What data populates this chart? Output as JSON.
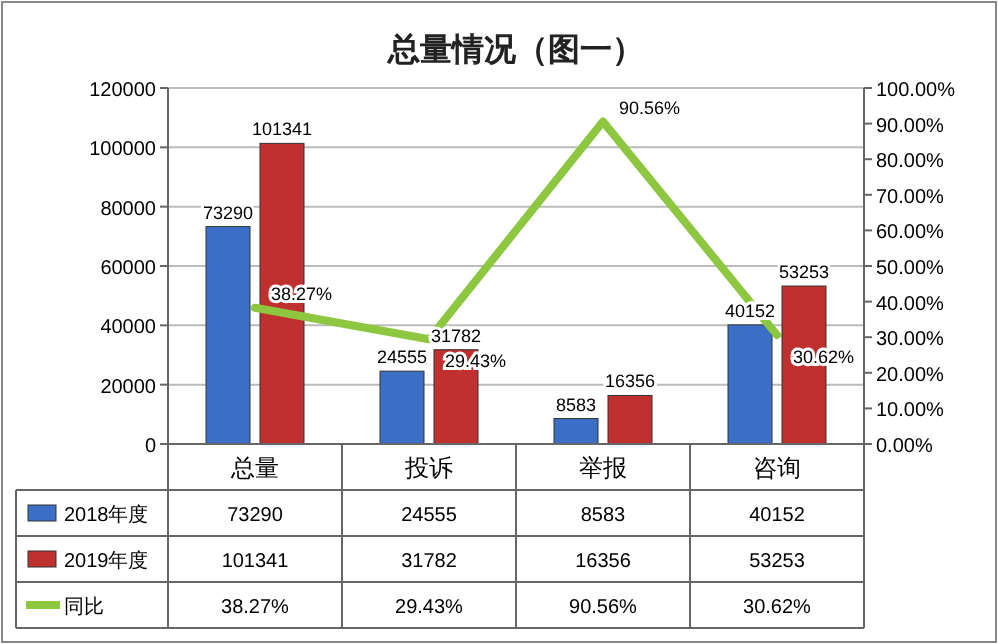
{
  "chart_data": {
    "type": "bar",
    "title": "总量情况（图一）",
    "categories": [
      "总量",
      "投诉",
      "举报",
      "咨询"
    ],
    "series": [
      {
        "name": "2018年度",
        "color": "#3b6fc6",
        "values": [
          73290,
          24555,
          8583,
          40152
        ],
        "value_labels": [
          "73290",
          "24555",
          "8583",
          "40152"
        ]
      },
      {
        "name": "2019年度",
        "color": "#c0302e",
        "values": [
          101341,
          31782,
          16356,
          53253
        ],
        "value_labels": [
          "101341",
          "31782",
          "16356",
          "53253"
        ]
      },
      {
        "name": "同比",
        "type": "line",
        "axis": "y2",
        "color": "#8dc63f",
        "values": [
          38.27,
          29.43,
          90.56,
          30.62
        ],
        "value_labels": [
          "38.27%",
          "29.43%",
          "90.56%",
          "30.62%"
        ]
      }
    ],
    "ylim": [
      0,
      120000
    ],
    "yticks": [
      0,
      20000,
      40000,
      60000,
      80000,
      100000,
      120000
    ],
    "y2lim": [
      0,
      100
    ],
    "y2ticks": [
      {
        "value": 0,
        "label": "0.00%"
      },
      {
        "value": 10,
        "label": "10.00%"
      },
      {
        "value": 20,
        "label": "20.00%"
      },
      {
        "value": 30,
        "label": "30.00%"
      },
      {
        "value": 40,
        "label": "40.00%"
      },
      {
        "value": 50,
        "label": "50.00%"
      },
      {
        "value": 60,
        "label": "60.00%"
      },
      {
        "value": 70,
        "label": "70.00%"
      },
      {
        "value": 80,
        "label": "80.00%"
      },
      {
        "value": 90,
        "label": "90.00%"
      },
      {
        "value": 100,
        "label": "100.00%"
      }
    ],
    "data_labels": true,
    "grid": "y",
    "legend": "bottom"
  }
}
